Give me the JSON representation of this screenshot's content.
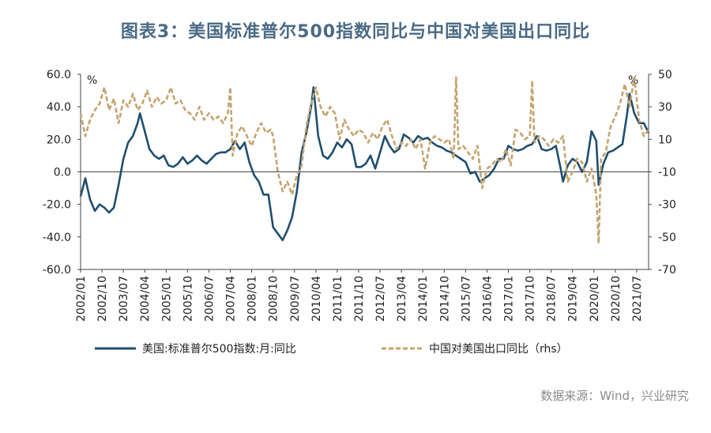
{
  "title": "图表3：美国标准普尔500指数同比与中国对美国出口同比",
  "source": "数据来源：Wind，兴业研究",
  "colors": {
    "us": "#1f4e6e",
    "cn": "#c4a36f",
    "axis": "#444444",
    "title": "#4a6a86"
  },
  "chart_data": {
    "type": "line",
    "x_ticks": [
      "2002/01",
      "2002/10",
      "2003/07",
      "2004/04",
      "2005/01",
      "2005/10",
      "2006/07",
      "2007/04",
      "2008/01",
      "2008/10",
      "2009/07",
      "2010/04",
      "2011/01",
      "2011/10",
      "2012/07",
      "2013/04",
      "2014/01",
      "2014/10",
      "2015/07",
      "2016/04",
      "2017/01",
      "2017/10",
      "2018/07",
      "2019/04",
      "2020/01",
      "2020/10",
      "2021/07"
    ],
    "y_left": {
      "ticks": [
        "60.0",
        "40.0",
        "20.0",
        "0.0",
        "-20.0",
        "-40.0",
        "-60.0"
      ],
      "min": -60,
      "max": 60,
      "unit": "%"
    },
    "y_right": {
      "ticks": [
        "50",
        "30",
        "10",
        "-10",
        "-30",
        "-50",
        "-70"
      ],
      "min": -70,
      "max": 50,
      "unit": "%"
    },
    "legend": {
      "placement": "bottom",
      "entries": [
        "美国:标准普尔500指数:月:同比",
        "中国对美国出口同比（rhs）"
      ]
    },
    "series": [
      {
        "name": "美国:标准普尔500指数:月:同比",
        "axis": "left",
        "style": "solid",
        "points": [
          [
            "2002/01",
            -15
          ],
          [
            "2002/03",
            -4
          ],
          [
            "2002/05",
            -17
          ],
          [
            "2002/07",
            -24
          ],
          [
            "2002/09",
            -20
          ],
          [
            "2002/11",
            -22
          ],
          [
            "2003/01",
            -25
          ],
          [
            "2003/03",
            -22
          ],
          [
            "2003/05",
            -8
          ],
          [
            "2003/07",
            8
          ],
          [
            "2003/09",
            18
          ],
          [
            "2003/11",
            22
          ],
          [
            "2004/01",
            30
          ],
          [
            "2004/02",
            36
          ],
          [
            "2004/04",
            25
          ],
          [
            "2004/06",
            14
          ],
          [
            "2004/08",
            10
          ],
          [
            "2004/10",
            8
          ],
          [
            "2004/12",
            10
          ],
          [
            "2005/02",
            4
          ],
          [
            "2005/04",
            3
          ],
          [
            "2005/06",
            5
          ],
          [
            "2005/08",
            9
          ],
          [
            "2005/10",
            5
          ],
          [
            "2005/12",
            7
          ],
          [
            "2006/02",
            10
          ],
          [
            "2006/04",
            7
          ],
          [
            "2006/06",
            5
          ],
          [
            "2006/08",
            8
          ],
          [
            "2006/10",
            11
          ],
          [
            "2006/12",
            12
          ],
          [
            "2007/02",
            12
          ],
          [
            "2007/04",
            14
          ],
          [
            "2007/06",
            19
          ],
          [
            "2007/08",
            14
          ],
          [
            "2007/10",
            18
          ],
          [
            "2007/12",
            6
          ],
          [
            "2008/02",
            -2
          ],
          [
            "2008/04",
            -6
          ],
          [
            "2008/06",
            -14
          ],
          [
            "2008/08",
            -14
          ],
          [
            "2008/10",
            -34
          ],
          [
            "2008/12",
            -38
          ],
          [
            "2009/02",
            -42
          ],
          [
            "2009/04",
            -36
          ],
          [
            "2009/06",
            -28
          ],
          [
            "2009/08",
            -12
          ],
          [
            "2009/10",
            12
          ],
          [
            "2009/12",
            24
          ],
          [
            "2010/02",
            40
          ],
          [
            "2010/03",
            52
          ],
          [
            "2010/05",
            22
          ],
          [
            "2010/07",
            10
          ],
          [
            "2010/09",
            8
          ],
          [
            "2010/11",
            12
          ],
          [
            "2011/01",
            18
          ],
          [
            "2011/03",
            15
          ],
          [
            "2011/05",
            20
          ],
          [
            "2011/07",
            17
          ],
          [
            "2011/09",
            3
          ],
          [
            "2011/11",
            3
          ],
          [
            "2012/01",
            5
          ],
          [
            "2012/03",
            10
          ],
          [
            "2012/05",
            2
          ],
          [
            "2012/07",
            12
          ],
          [
            "2012/09",
            22
          ],
          [
            "2012/11",
            16
          ],
          [
            "2013/01",
            12
          ],
          [
            "2013/03",
            14
          ],
          [
            "2013/05",
            23
          ],
          [
            "2013/07",
            21
          ],
          [
            "2013/09",
            18
          ],
          [
            "2013/11",
            22
          ],
          [
            "2014/01",
            20
          ],
          [
            "2014/03",
            21
          ],
          [
            "2014/05",
            18
          ],
          [
            "2014/07",
            16
          ],
          [
            "2014/09",
            15
          ],
          [
            "2014/11",
            13
          ],
          [
            "2015/01",
            12
          ],
          [
            "2015/03",
            10
          ],
          [
            "2015/05",
            8
          ],
          [
            "2015/07",
            6
          ],
          [
            "2015/09",
            -1
          ],
          [
            "2015/11",
            0
          ],
          [
            "2016/01",
            -6
          ],
          [
            "2016/03",
            -4
          ],
          [
            "2016/05",
            -2
          ],
          [
            "2016/07",
            2
          ],
          [
            "2016/09",
            8
          ],
          [
            "2016/11",
            8
          ],
          [
            "2017/01",
            16
          ],
          [
            "2017/03",
            14
          ],
          [
            "2017/05",
            13
          ],
          [
            "2017/07",
            14
          ],
          [
            "2017/09",
            16
          ],
          [
            "2017/11",
            17
          ],
          [
            "2018/01",
            22
          ],
          [
            "2018/03",
            14
          ],
          [
            "2018/05",
            13
          ],
          [
            "2018/07",
            14
          ],
          [
            "2018/09",
            16
          ],
          [
            "2018/11",
            2
          ],
          [
            "2018/12",
            -6
          ],
          [
            "2019/02",
            4
          ],
          [
            "2019/04",
            8
          ],
          [
            "2019/06",
            6
          ],
          [
            "2019/08",
            0
          ],
          [
            "2019/10",
            6
          ],
          [
            "2019/12",
            25
          ],
          [
            "2020/02",
            19
          ],
          [
            "2020/03",
            -8
          ],
          [
            "2020/05",
            5
          ],
          [
            "2020/07",
            12
          ],
          [
            "2020/09",
            13
          ],
          [
            "2020/11",
            15
          ],
          [
            "2021/01",
            17
          ],
          [
            "2021/03",
            36
          ],
          [
            "2021/04",
            48
          ],
          [
            "2021/06",
            36
          ],
          [
            "2021/08",
            30
          ],
          [
            "2021/10",
            30
          ],
          [
            "2021/12",
            24
          ]
        ]
      },
      {
        "name": "中国对美国出口同比（rhs）",
        "axis": "right",
        "style": "dashed",
        "points": [
          [
            "2002/01",
            26
          ],
          [
            "2002/03",
            12
          ],
          [
            "2002/05",
            22
          ],
          [
            "2002/07",
            28
          ],
          [
            "2002/09",
            32
          ],
          [
            "2002/11",
            42
          ],
          [
            "2003/01",
            28
          ],
          [
            "2003/03",
            35
          ],
          [
            "2003/05",
            20
          ],
          [
            "2003/07",
            34
          ],
          [
            "2003/09",
            30
          ],
          [
            "2003/11",
            38
          ],
          [
            "2004/01",
            28
          ],
          [
            "2004/03",
            32
          ],
          [
            "2004/05",
            40
          ],
          [
            "2004/07",
            30
          ],
          [
            "2004/09",
            36
          ],
          [
            "2004/11",
            32
          ],
          [
            "2005/01",
            34
          ],
          [
            "2005/03",
            42
          ],
          [
            "2005/05",
            32
          ],
          [
            "2005/07",
            34
          ],
          [
            "2005/09",
            28
          ],
          [
            "2005/11",
            26
          ],
          [
            "2006/01",
            22
          ],
          [
            "2006/03",
            30
          ],
          [
            "2006/05",
            22
          ],
          [
            "2006/07",
            26
          ],
          [
            "2006/09",
            22
          ],
          [
            "2006/11",
            24
          ],
          [
            "2007/01",
            20
          ],
          [
            "2007/03",
            26
          ],
          [
            "2007/04",
            42
          ],
          [
            "2007/05",
            0
          ],
          [
            "2007/07",
            14
          ],
          [
            "2007/09",
            18
          ],
          [
            "2007/11",
            12
          ],
          [
            "2008/01",
            6
          ],
          [
            "2008/03",
            14
          ],
          [
            "2008/05",
            20
          ],
          [
            "2008/07",
            14
          ],
          [
            "2008/09",
            16
          ],
          [
            "2008/10",
            12
          ],
          [
            "2008/12",
            -10
          ],
          [
            "2009/02",
            -22
          ],
          [
            "2009/04",
            -16
          ],
          [
            "2009/06",
            -24
          ],
          [
            "2009/08",
            -12
          ],
          [
            "2009/10",
            -6
          ],
          [
            "2009/12",
            18
          ],
          [
            "2010/02",
            32
          ],
          [
            "2010/04",
            42
          ],
          [
            "2010/06",
            30
          ],
          [
            "2010/08",
            24
          ],
          [
            "2010/10",
            30
          ],
          [
            "2010/12",
            26
          ],
          [
            "2011/02",
            10
          ],
          [
            "2011/04",
            22
          ],
          [
            "2011/06",
            16
          ],
          [
            "2011/08",
            12
          ],
          [
            "2011/10",
            16
          ],
          [
            "2011/12",
            14
          ],
          [
            "2012/02",
            8
          ],
          [
            "2012/04",
            14
          ],
          [
            "2012/06",
            10
          ],
          [
            "2012/08",
            18
          ],
          [
            "2012/10",
            22
          ],
          [
            "2012/12",
            12
          ],
          [
            "2013/02",
            4
          ],
          [
            "2013/04",
            8
          ],
          [
            "2013/06",
            6
          ],
          [
            "2013/08",
            10
          ],
          [
            "2013/10",
            4
          ],
          [
            "2013/12",
            10
          ],
          [
            "2014/02",
            -8
          ],
          [
            "2014/04",
            8
          ],
          [
            "2014/06",
            12
          ],
          [
            "2014/08",
            10
          ],
          [
            "2014/10",
            8
          ],
          [
            "2014/12",
            10
          ],
          [
            "2015/02",
            -2
          ],
          [
            "2015/03",
            48
          ],
          [
            "2015/04",
            4
          ],
          [
            "2015/06",
            6
          ],
          [
            "2015/08",
            2
          ],
          [
            "2015/10",
            -2
          ],
          [
            "2015/12",
            6
          ],
          [
            "2016/02",
            -20
          ],
          [
            "2016/04",
            -8
          ],
          [
            "2016/06",
            -6
          ],
          [
            "2016/08",
            -2
          ],
          [
            "2016/10",
            -4
          ],
          [
            "2016/12",
            4
          ],
          [
            "2017/02",
            -6
          ],
          [
            "2017/04",
            16
          ],
          [
            "2017/06",
            14
          ],
          [
            "2017/08",
            10
          ],
          [
            "2017/10",
            12
          ],
          [
            "2017/11",
            46
          ],
          [
            "2017/12",
            8
          ],
          [
            "2018/02",
            12
          ],
          [
            "2018/04",
            10
          ],
          [
            "2018/06",
            6
          ],
          [
            "2018/08",
            10
          ],
          [
            "2018/10",
            8
          ],
          [
            "2018/12",
            12
          ],
          [
            "2019/02",
            -16
          ],
          [
            "2019/04",
            -10
          ],
          [
            "2019/06",
            -2
          ],
          [
            "2019/08",
            -4
          ],
          [
            "2019/10",
            -16
          ],
          [
            "2019/12",
            -8
          ],
          [
            "2020/02",
            -24
          ],
          [
            "2020/03",
            -54
          ],
          [
            "2020/04",
            -2
          ],
          [
            "2020/06",
            2
          ],
          [
            "2020/08",
            18
          ],
          [
            "2020/10",
            24
          ],
          [
            "2020/12",
            32
          ],
          [
            "2021/02",
            44
          ],
          [
            "2021/04",
            30
          ],
          [
            "2021/06",
            48
          ],
          [
            "2021/08",
            22
          ],
          [
            "2021/10",
            12
          ],
          [
            "2021/12",
            16
          ]
        ]
      }
    ]
  }
}
